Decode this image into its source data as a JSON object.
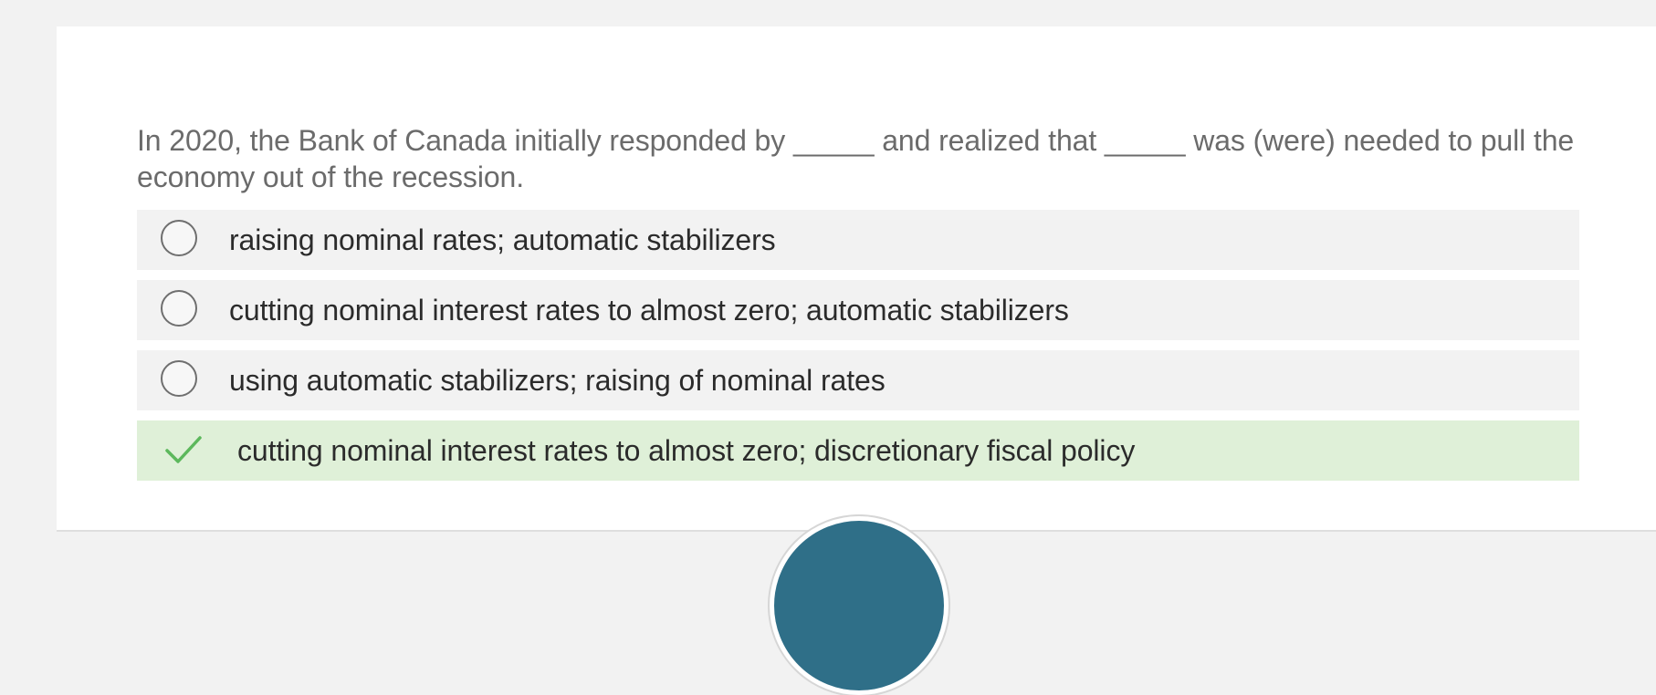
{
  "question": {
    "text": "In 2020, the Bank of Canada initially responded by _____ and realized that _____ was (were) needed to pull the economy out of the recession."
  },
  "options": [
    {
      "label": "raising nominal rates; automatic stabilizers",
      "state": "unselected"
    },
    {
      "label": "cutting nominal interest rates to almost zero; automatic stabilizers",
      "state": "unselected"
    },
    {
      "label": "using automatic stabilizers; raising of nominal rates",
      "state": "unselected"
    },
    {
      "label": "cutting nominal interest rates to almost zero; discretionary fiscal policy",
      "state": "correct"
    }
  ],
  "colors": {
    "page_background": "#f2f2f2",
    "card_background": "#ffffff",
    "option_background": "#f2f2f2",
    "correct_background": "#dff0d8",
    "check_color": "#5cb85c",
    "question_text": "#6b6b6b",
    "option_text": "#2b2b2b",
    "bottom_button": "#2f6f88"
  },
  "icons": {
    "radio": "radio-circle-icon",
    "correct": "checkmark-icon"
  }
}
